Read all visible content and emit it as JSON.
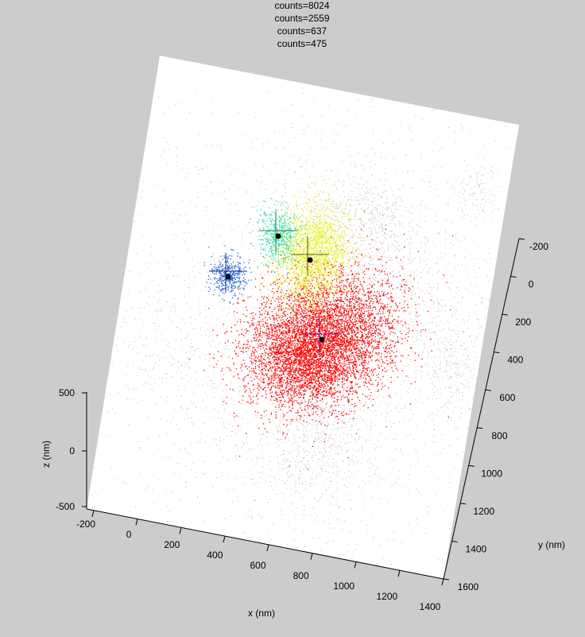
{
  "chart_data": {
    "type": "scatter",
    "title_lines": [
      "counts=8024",
      "counts=2559",
      "counts=637",
      "counts=475"
    ],
    "xlabel": "x (nm)",
    "ylabel": "y (nm)",
    "zlabel": "z (nm)",
    "x_ticks": [
      "-200",
      "0",
      "200",
      "400",
      "600",
      "800",
      "1000",
      "1200",
      "1400"
    ],
    "y_ticks": [
      "-200",
      "0",
      "200",
      "400",
      "600",
      "800",
      "1000",
      "1200",
      "1400",
      "1600"
    ],
    "z_ticks": [
      "500",
      "0",
      "-500"
    ],
    "colors": {
      "background": "#cccccc",
      "plot_face": "#ffffff",
      "noise": "#bbbbbb",
      "red_cluster": "#ff0000",
      "yellow_cluster": "#e8f020",
      "cyan_cluster": "#30e0b0",
      "blue_cluster": "#2060e0",
      "centroid": "#000000"
    },
    "clusters": [
      {
        "name": "counts=8024",
        "color": "#ff0000"
      },
      {
        "name": "counts=2559",
        "color": "#e8f020"
      },
      {
        "name": "counts=637",
        "color": "#30e0b0"
      },
      {
        "name": "counts=475",
        "color": "#2060e0"
      }
    ]
  }
}
